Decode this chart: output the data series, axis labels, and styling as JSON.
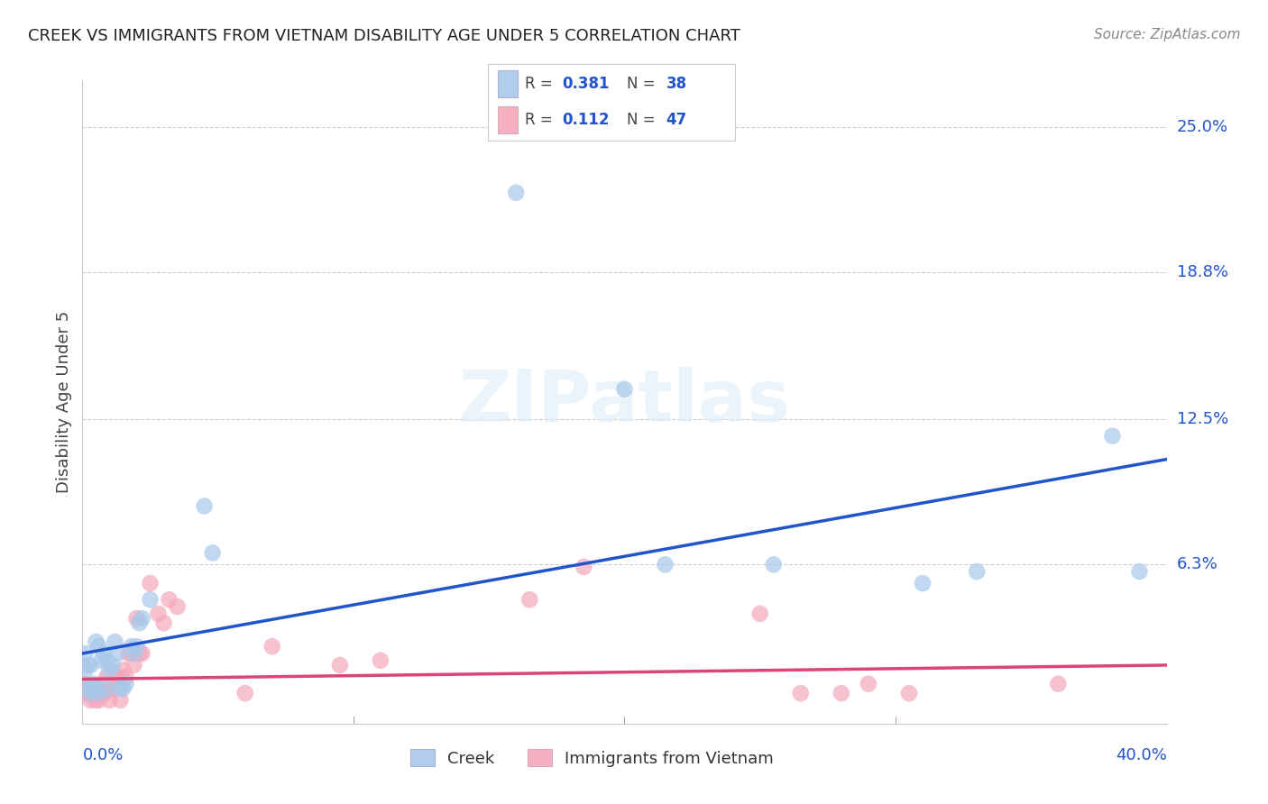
{
  "title": "CREEK VS IMMIGRANTS FROM VIETNAM DISABILITY AGE UNDER 5 CORRELATION CHART",
  "source": "Source: ZipAtlas.com",
  "ylabel": "Disability Age Under 5",
  "creek_color": "#a8c8ea",
  "vietnam_color": "#f5a8bc",
  "creek_line_color": "#2255cc",
  "vietnam_line_color": "#dd4477",
  "xlim": [
    0.0,
    0.4
  ],
  "ylim": [
    -0.005,
    0.27
  ],
  "ytick_values": [
    0.063,
    0.125,
    0.188,
    0.25
  ],
  "ytick_labels": [
    "6.3%",
    "12.5%",
    "18.8%",
    "25.0%"
  ],
  "creek_x": [
    0.001,
    0.001,
    0.002,
    0.002,
    0.003,
    0.003,
    0.004,
    0.005,
    0.005,
    0.006,
    0.006,
    0.007,
    0.008,
    0.009,
    0.009,
    0.01,
    0.011,
    0.012,
    0.013,
    0.014,
    0.015,
    0.016,
    0.018,
    0.019,
    0.02,
    0.021,
    0.022,
    0.045,
    0.048,
    0.16,
    0.2,
    0.215,
    0.255,
    0.31,
    0.33,
    0.38,
    0.39,
    0.025
  ],
  "creek_y": [
    0.025,
    0.018,
    0.02,
    0.01,
    0.02,
    0.008,
    0.012,
    0.03,
    0.01,
    0.028,
    0.008,
    0.022,
    0.025,
    0.022,
    0.01,
    0.018,
    0.02,
    0.03,
    0.025,
    0.01,
    0.01,
    0.012,
    0.028,
    0.025,
    0.028,
    0.038,
    0.04,
    0.088,
    0.068,
    0.222,
    0.138,
    0.063,
    0.063,
    0.055,
    0.06,
    0.118,
    0.06,
    0.048
  ],
  "vietnam_x": [
    0.001,
    0.001,
    0.002,
    0.002,
    0.003,
    0.003,
    0.004,
    0.005,
    0.005,
    0.006,
    0.006,
    0.007,
    0.007,
    0.008,
    0.008,
    0.009,
    0.01,
    0.01,
    0.011,
    0.012,
    0.013,
    0.014,
    0.015,
    0.016,
    0.017,
    0.018,
    0.019,
    0.02,
    0.021,
    0.022,
    0.025,
    0.028,
    0.03,
    0.032,
    0.035,
    0.06,
    0.07,
    0.095,
    0.11,
    0.165,
    0.185,
    0.25,
    0.265,
    0.28,
    0.29,
    0.305,
    0.36
  ],
  "vietnam_y": [
    0.012,
    0.008,
    0.01,
    0.008,
    0.01,
    0.005,
    0.01,
    0.01,
    0.005,
    0.01,
    0.005,
    0.012,
    0.008,
    0.012,
    0.008,
    0.015,
    0.005,
    0.01,
    0.01,
    0.015,
    0.015,
    0.005,
    0.018,
    0.015,
    0.025,
    0.025,
    0.02,
    0.04,
    0.025,
    0.025,
    0.055,
    0.042,
    0.038,
    0.048,
    0.045,
    0.008,
    0.028,
    0.02,
    0.022,
    0.048,
    0.062,
    0.042,
    0.008,
    0.008,
    0.012,
    0.008,
    0.012
  ],
  "creek_line_y0": 0.025,
  "creek_line_y1": 0.108,
  "vietnam_line_y0": 0.014,
  "vietnam_line_y1": 0.02
}
